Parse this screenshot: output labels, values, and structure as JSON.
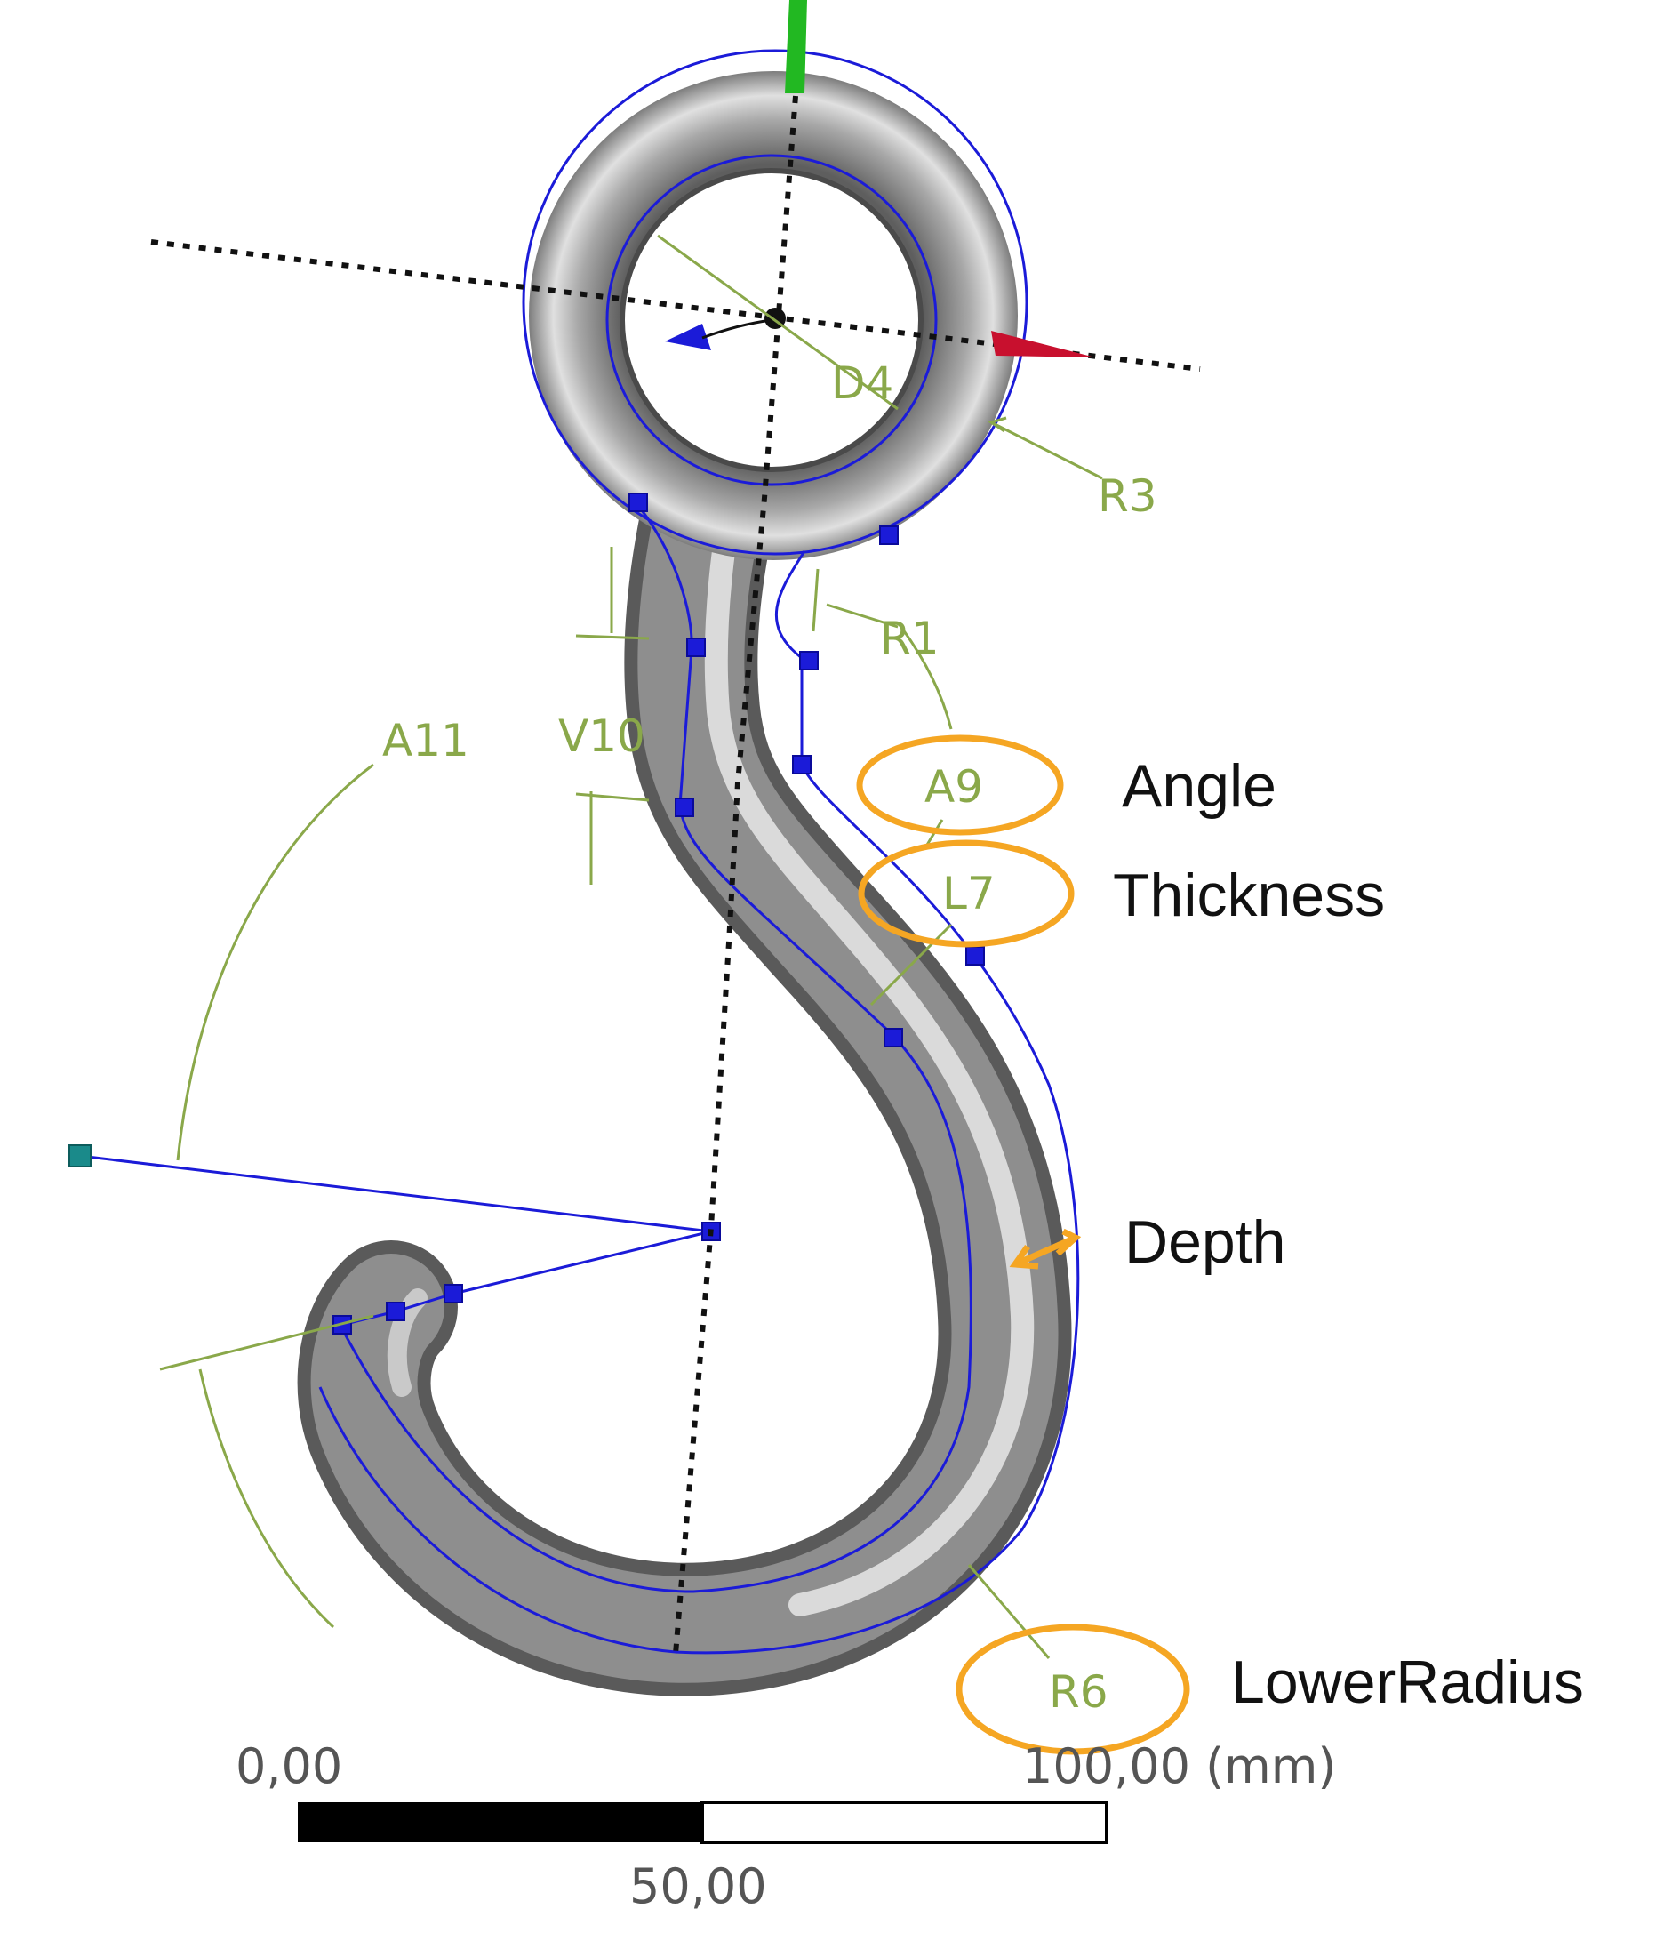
{
  "dimensions": {
    "d4": "D4",
    "r3": "R3",
    "r1": "R1",
    "v10": "V10",
    "a11": "A11",
    "a9": "A9",
    "l7": "L7",
    "r6": "R6"
  },
  "annotations": {
    "angle": "Angle",
    "thickness": "Thickness",
    "depth": "Depth",
    "lower_radius": "LowerRadius"
  },
  "scale_bar": {
    "left_label": "0,00",
    "right_label": "100,00 (mm)",
    "mid_label": "50,00"
  },
  "colors": {
    "dimension": "#8aa84a",
    "sketch": "#1b1bd8",
    "highlight": "#f5a623",
    "axis_x": "#c8102e",
    "axis_y": "#22b822",
    "body": "#8c8c8c"
  }
}
